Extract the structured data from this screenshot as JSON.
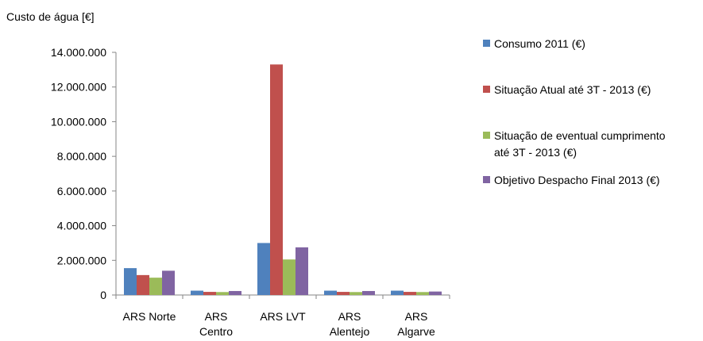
{
  "chart_data": {
    "type": "bar",
    "ylabel": "Custo de água  [€]",
    "categories": [
      [
        "ARS Norte"
      ],
      [
        "ARS",
        "Centro"
      ],
      [
        "ARS LVT"
      ],
      [
        "ARS",
        "Alentejo"
      ],
      [
        "ARS",
        "Algarve"
      ]
    ],
    "series": [
      {
        "name": "Consumo 2011 (€)",
        "color": "#4F81BD",
        "values": [
          1550000,
          250000,
          3000000,
          250000,
          250000
        ]
      },
      {
        "name": "Situação Atual até 3T - 2013 (€)",
        "color": "#C0504D",
        "values": [
          1150000,
          180000,
          13300000,
          180000,
          180000
        ]
      },
      {
        "name": "Situação de eventual cumprimento até 3T - 2013 (€)",
        "color": "#9BBB59",
        "values": [
          1000000,
          170000,
          2050000,
          170000,
          170000
        ]
      },
      {
        "name": "Objetivo Despacho Final 2013 (€)",
        "color": "#8064A2",
        "values": [
          1400000,
          230000,
          2750000,
          230000,
          200000
        ]
      }
    ],
    "legend_lines": [
      [
        "Consumo 2011 (€)"
      ],
      [
        "Situação Atual até 3T - 2013 (€)"
      ],
      [
        "Situação de eventual cumprimento",
        "até 3T - 2013 (€)"
      ],
      [
        "Objetivo Despacho Final 2013 (€)"
      ]
    ],
    "yticks": [
      "0",
      "2.000.000",
      "4.000.000",
      "6.000.000",
      "8.000.000",
      "10.000.000",
      "12.000.000",
      "14.000.000"
    ],
    "ylim": [
      0,
      14000000
    ],
    "legend_position": "right",
    "grid": false
  }
}
